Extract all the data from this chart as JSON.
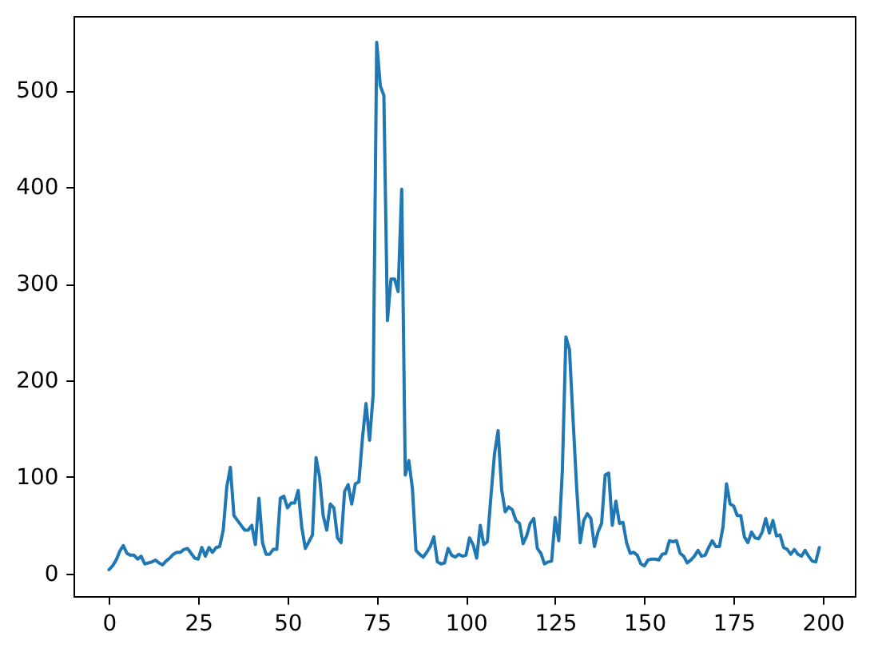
{
  "chart_data": {
    "type": "line",
    "x": [
      0,
      1,
      2,
      3,
      4,
      5,
      6,
      7,
      8,
      9,
      10,
      11,
      12,
      13,
      14,
      15,
      16,
      17,
      18,
      19,
      20,
      21,
      22,
      23,
      24,
      25,
      26,
      27,
      28,
      29,
      30,
      31,
      32,
      33,
      34,
      35,
      36,
      37,
      38,
      39,
      40,
      41,
      42,
      43,
      44,
      45,
      46,
      47,
      48,
      49,
      50,
      51,
      52,
      53,
      54,
      55,
      56,
      57,
      58,
      59,
      60,
      61,
      62,
      63,
      64,
      65,
      66,
      67,
      68,
      69,
      70,
      71,
      72,
      73,
      74,
      75,
      76,
      77,
      78,
      79,
      80,
      81,
      82,
      83,
      84,
      85,
      86,
      87,
      88,
      89,
      90,
      91,
      92,
      93,
      94,
      95,
      96,
      97,
      98,
      99,
      100,
      101,
      102,
      103,
      104,
      105,
      106,
      107,
      108,
      109,
      110,
      111,
      112,
      113,
      114,
      115,
      116,
      117,
      118,
      119,
      120,
      121,
      122,
      123,
      124,
      125,
      126,
      127,
      128,
      129,
      130,
      131,
      132,
      133,
      134,
      135,
      136,
      137,
      138,
      139,
      140,
      141,
      142,
      143,
      144,
      145,
      146,
      147,
      148,
      149,
      150,
      151,
      152,
      153,
      154,
      155,
      156,
      157,
      158,
      159,
      160,
      161,
      162,
      163,
      164,
      165,
      166,
      167,
      168,
      169,
      170,
      171,
      172,
      173,
      174,
      175,
      176,
      177,
      178,
      179,
      180,
      181,
      182,
      183,
      184,
      185,
      186,
      187,
      188,
      189,
      190,
      191,
      192,
      193,
      194,
      195,
      196,
      197,
      198,
      199
    ],
    "series": [
      {
        "color": "#1f77b4",
        "values": [
          4,
          8,
          14,
          23,
          29,
          21,
          19,
          19,
          15,
          18,
          10,
          11,
          12,
          14,
          11,
          9,
          13,
          16,
          20,
          22,
          22,
          25,
          26,
          21,
          16,
          15,
          27,
          18,
          27,
          22,
          27,
          28,
          45,
          90,
          110,
          60,
          55,
          50,
          45,
          45,
          50,
          30,
          78,
          32,
          20,
          20,
          25,
          25,
          78,
          80,
          68,
          73,
          73,
          86,
          48,
          26,
          33,
          40,
          120,
          100,
          60,
          45,
          72,
          68,
          37,
          32,
          85,
          92,
          72,
          93,
          95,
          140,
          176,
          138,
          185,
          550,
          505,
          495,
          262,
          305,
          305,
          292,
          398,
          102,
          117,
          88,
          24,
          20,
          17,
          22,
          28,
          38,
          12,
          10,
          11,
          26,
          19,
          17,
          20,
          18,
          19,
          37,
          30,
          16,
          50,
          30,
          33,
          80,
          124,
          148,
          87,
          64,
          69,
          66,
          55,
          52,
          31,
          39,
          52,
          57,
          26,
          21,
          10,
          12,
          13,
          58,
          34,
          106,
          245,
          232,
          160,
          90,
          32,
          55,
          62,
          57,
          28,
          43,
          52,
          102,
          104,
          50,
          75,
          52,
          53,
          32,
          21,
          22,
          19,
          10,
          8,
          14,
          15,
          15,
          14,
          20,
          21,
          34,
          33,
          34,
          21,
          18,
          11,
          14,
          18,
          24,
          18,
          19,
          27,
          34,
          28,
          28,
          48,
          93,
          72,
          70,
          60,
          60,
          38,
          32,
          43,
          37,
          36,
          43,
          57,
          42,
          55,
          39,
          40,
          27,
          25,
          20,
          25,
          20,
          18,
          24,
          18,
          13,
          12,
          27
        ]
      }
    ],
    "xlim": [
      -9.95,
      208.95
    ],
    "ylim": [
      -23.3,
      577.3
    ],
    "xticks": [
      0,
      25,
      50,
      75,
      100,
      125,
      150,
      175,
      200
    ],
    "yticks": [
      0,
      100,
      200,
      300,
      400,
      500
    ]
  }
}
